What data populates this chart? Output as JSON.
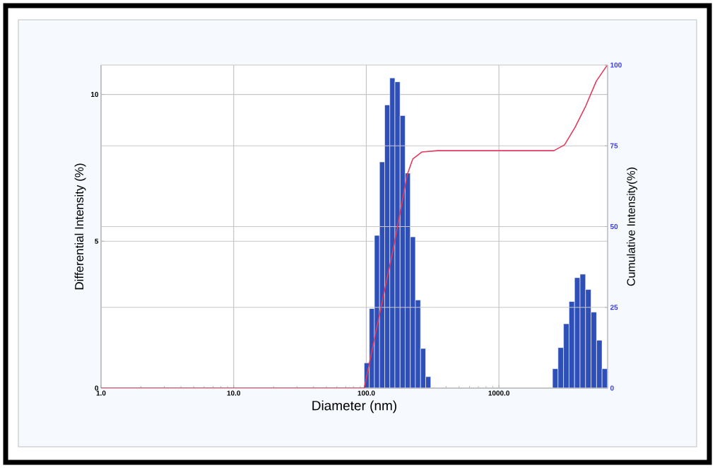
{
  "chart_data": {
    "type": "histogram",
    "xlabel": "Diameter (nm)",
    "ylabel": "Differential Intensity (%)",
    "y2label": "Cumulative Intensity(%)",
    "log": "x",
    "grid": true,
    "xlim": [
      1,
      6600
    ],
    "ylim": [
      0,
      11
    ],
    "y2lim": [
      0,
      100
    ],
    "xticks": [
      {
        "value": 1,
        "label": "1.0"
      },
      {
        "value": 10,
        "label": "10.0"
      },
      {
        "value": 100,
        "label": "100.0"
      },
      {
        "value": 1000,
        "label": "1000.0"
      }
    ],
    "yticks": [
      0,
      5,
      10
    ],
    "y2ticks": [
      0,
      25,
      50,
      75,
      100
    ],
    "series": [
      {
        "color": "#2f4fb8",
        "bins": [
          96.4,
          105.4,
          115.2,
          125.9,
          137.6,
          150.4,
          164.4,
          179.7,
          196.4,
          214.7,
          234.6,
          256.5,
          280.3,
          306.4
        ],
        "values": [
          0.86,
          2.71,
          5.2,
          7.7,
          9.64,
          10.56,
          10.43,
          9.28,
          7.32,
          5.15,
          3.0,
          1.35,
          0.39
        ]
      },
      {
        "color": "#2f4fb8",
        "bins": [
          2536,
          2790,
          3070,
          3378,
          3717,
          4090,
          4500,
          4951,
          5448,
          5994,
          6596
        ],
        "values": [
          0.66,
          1.38,
          2.19,
          2.95,
          3.76,
          3.88,
          3.36,
          2.59,
          1.63,
          0.66
        ]
      },
      {
        "type": "line",
        "axis": "y2",
        "color": "#e23a5c",
        "x": [
          1,
          96.4,
          161,
          203.6,
          224,
          263,
          344,
          2600,
          3125,
          3750,
          4510,
          5420,
          6516
        ],
        "values": [
          0,
          0,
          43.8,
          66.1,
          70.9,
          73.1,
          73.5,
          73.5,
          75.3,
          80.7,
          87.3,
          95,
          99.8
        ]
      }
    ]
  }
}
